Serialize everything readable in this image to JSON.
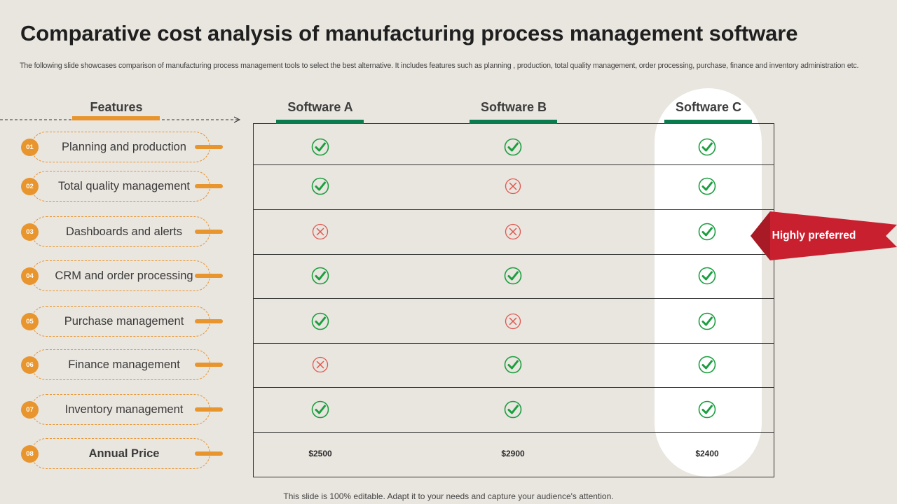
{
  "title": "Comparative cost analysis of manufacturing process management software",
  "subtitle": "The following slide showcases comparison of manufacturing process management tools to select the best alternative. It includes features such as planning , production, total quality management, order processing, purchase, finance and inventory administration etc.",
  "features_header": "Features",
  "software": [
    {
      "name": "Software A",
      "price": "$2500",
      "supports": [
        true,
        true,
        false,
        true,
        true,
        false,
        true
      ]
    },
    {
      "name": "Software B",
      "price": "$2900",
      "supports": [
        true,
        false,
        false,
        true,
        false,
        true,
        true
      ]
    },
    {
      "name": "Software C",
      "price": "$2400",
      "supports": [
        true,
        true,
        true,
        true,
        true,
        true,
        true
      ]
    }
  ],
  "features": [
    {
      "num": "01",
      "label": "Planning and production"
    },
    {
      "num": "02",
      "label": "Total quality management"
    },
    {
      "num": "03",
      "label": "Dashboards and alerts"
    },
    {
      "num": "04",
      "label": "CRM and order processing"
    },
    {
      "num": "05",
      "label": "Purchase management"
    },
    {
      "num": "06",
      "label": "Finance management"
    },
    {
      "num": "07",
      "label": "Inventory management"
    },
    {
      "num": "08",
      "label": "Annual Price"
    }
  ],
  "callout": "Highly preferred",
  "footer": "This slide is 100% editable. Adapt it to your needs and capture your audience's attention.",
  "colors": {
    "accent": "#e8952e",
    "green": "#0a7a4f",
    "check": "#1a9e3f",
    "cross": "#e0564f",
    "callout": "#c8202f"
  }
}
